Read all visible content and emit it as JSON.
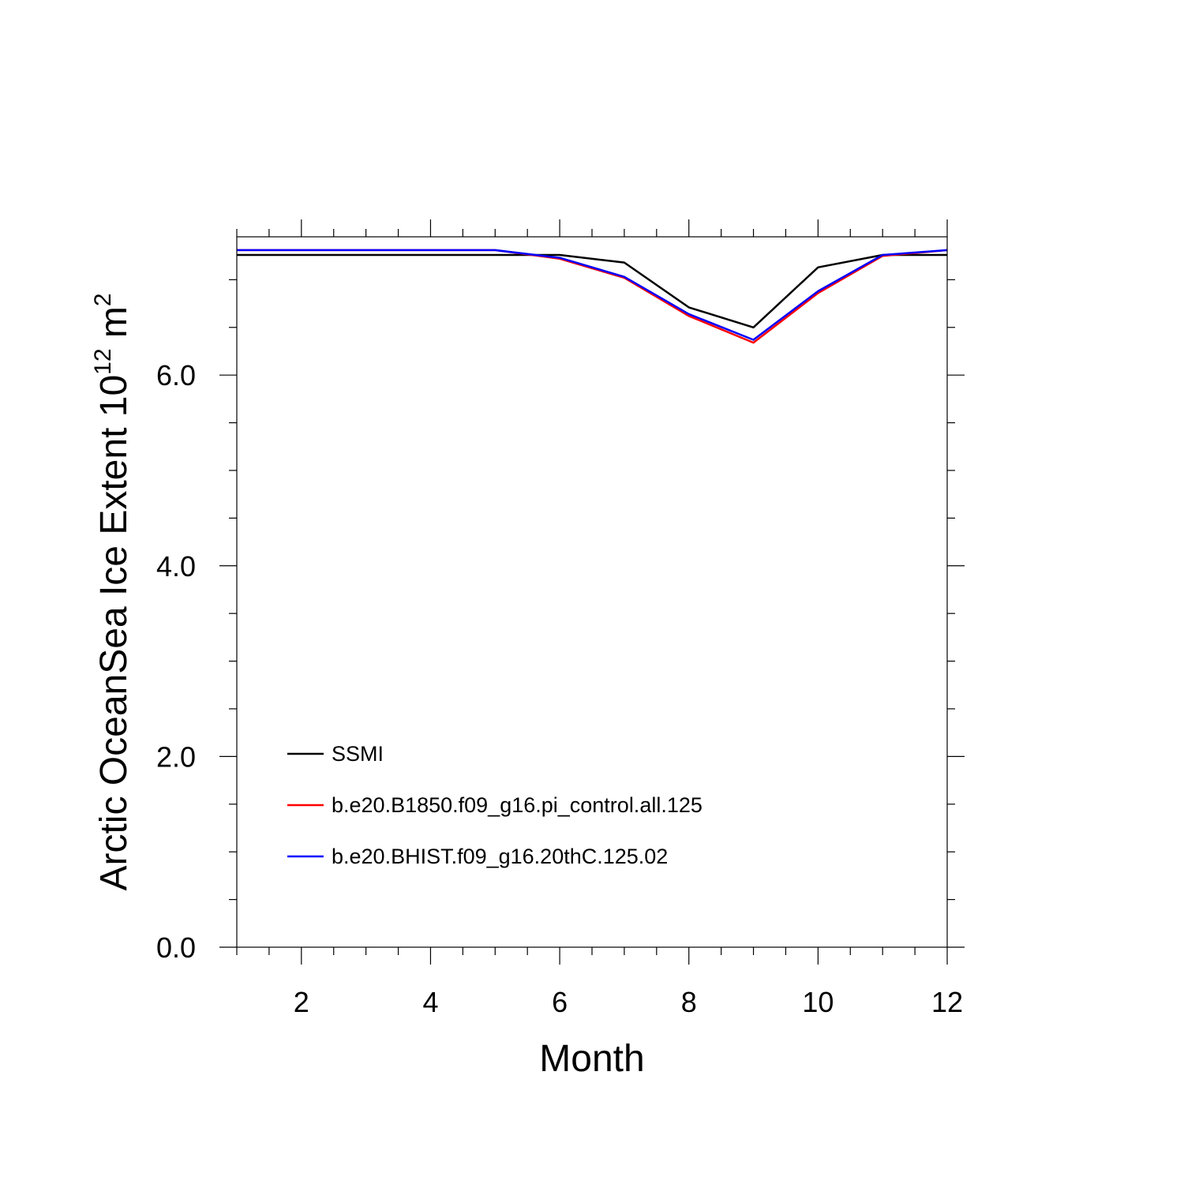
{
  "chart_data": {
    "type": "line",
    "title": "",
    "xlabel": "Month",
    "ylabel": {
      "text_main": "Arctic OceanSea Ice Extent 10",
      "superscript_1": "12",
      "text_unit": " m",
      "superscript_2": "2"
    },
    "xlim": [
      1,
      12
    ],
    "ylim": [
      0,
      7.45
    ],
    "x_ticks": [
      2,
      4,
      6,
      8,
      10,
      12
    ],
    "x_tick_labels": [
      "2",
      "4",
      "6",
      "8",
      "10",
      "12"
    ],
    "y_ticks": [
      0,
      2,
      4,
      6
    ],
    "y_tick_labels": [
      "0.0",
      "2.0",
      "4.0",
      "6.0"
    ],
    "grid": false,
    "legend_position": "lower-left",
    "x": [
      1,
      2,
      3,
      4,
      5,
      6,
      7,
      8,
      9,
      10,
      11,
      12
    ],
    "series": [
      {
        "name": "SSMI",
        "color": "#000000",
        "values": [
          7.26,
          7.26,
          7.26,
          7.26,
          7.26,
          7.26,
          7.18,
          6.71,
          6.5,
          7.13,
          7.26,
          7.26
        ]
      },
      {
        "name": "b.e20.B1850.f09_g16.pi_control.all.125",
        "color": "#ff0000",
        "values": [
          7.31,
          7.31,
          7.31,
          7.31,
          7.31,
          7.22,
          7.02,
          6.62,
          6.34,
          6.86,
          7.25,
          7.31
        ]
      },
      {
        "name": "b.e20.BHIST.f09_g16.20thC.125.02",
        "color": "#0000ff",
        "values": [
          7.31,
          7.31,
          7.31,
          7.31,
          7.31,
          7.23,
          7.03,
          6.64,
          6.37,
          6.88,
          7.26,
          7.31
        ]
      }
    ]
  }
}
